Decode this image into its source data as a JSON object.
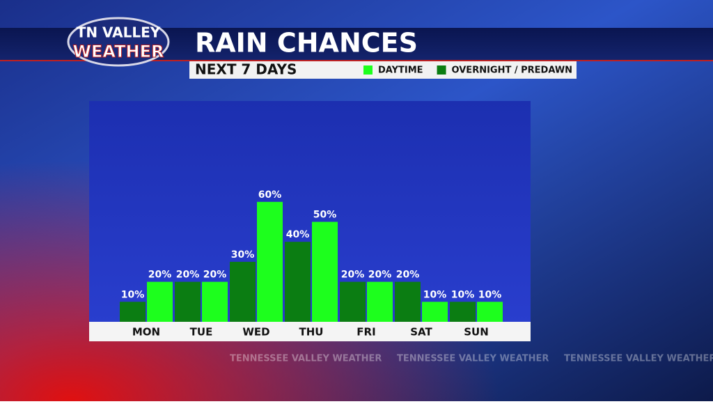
{
  "logo": {
    "line1": "TN VALLEY",
    "line2": "WEATHER"
  },
  "watermark": "TENNESSEE VALLEY WEATHER",
  "chart_data": {
    "type": "bar",
    "title": "RAIN CHANCES",
    "subtitle": "NEXT 7 DAYS",
    "categories": [
      "MON",
      "TUE",
      "WED",
      "THU",
      "FRI",
      "SAT",
      "SUN"
    ],
    "series": [
      {
        "name": "OVERNIGHT / PREDAWN",
        "color": "#0b7d12",
        "values": [
          10,
          20,
          30,
          40,
          20,
          20,
          10
        ],
        "value_labels": [
          "10%",
          "20%",
          "30%",
          "40%",
          "20%",
          "20%",
          "10%"
        ]
      },
      {
        "name": "DAYTIME",
        "color": "#1dff1d",
        "values": [
          20,
          20,
          60,
          50,
          20,
          10,
          10
        ],
        "value_labels": [
          "20%",
          "20%",
          "60%",
          "50%",
          "20%",
          "10%",
          "10%"
        ]
      }
    ],
    "legend_order": [
      1,
      0
    ],
    "ylim": [
      0,
      100
    ]
  }
}
